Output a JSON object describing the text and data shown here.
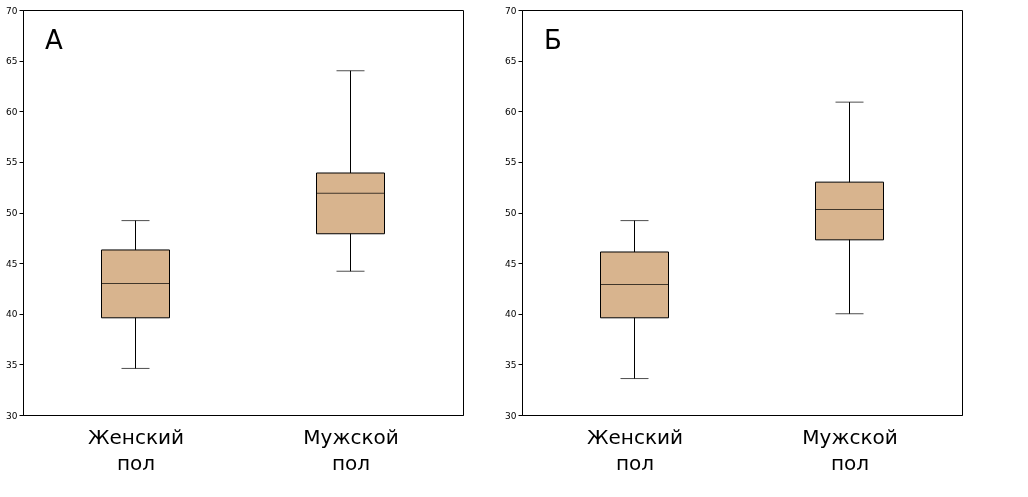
{
  "chart_data": [
    {
      "type": "box",
      "annotations": [
        {
          "text": "A"
        }
      ],
      "categories": [
        "Женский пол",
        "Мужской пол"
      ],
      "ylim": [
        30,
        70
      ],
      "yticks": [
        30,
        35,
        40,
        45,
        50,
        55,
        60,
        65,
        70
      ],
      "grid": false,
      "series": [
        {
          "color": "#d8b48e",
          "boxes": [
            {
              "low": 34.6,
              "q1": 39.6,
              "median": 43.0,
              "q3": 46.3,
              "high": 49.2
            },
            {
              "low": 44.2,
              "q1": 47.9,
              "median": 51.9,
              "q3": 53.9,
              "high": 64.0
            }
          ]
        }
      ]
    },
    {
      "type": "box",
      "annotations": [
        {
          "text": "Б"
        }
      ],
      "categories": [
        "Женский пол",
        "Мужской пол"
      ],
      "ylim": [
        30,
        70
      ],
      "yticks": [
        30,
        35,
        40,
        45,
        50,
        55,
        60,
        65,
        70
      ],
      "grid": false,
      "series": [
        {
          "color": "#d8b48e",
          "boxes": [
            {
              "low": 33.6,
              "q1": 39.6,
              "median": 42.9,
              "q3": 46.1,
              "high": 49.2
            },
            {
              "low": 40.0,
              "q1": 47.3,
              "median": 50.3,
              "q3": 53.0,
              "high": 60.9
            }
          ]
        }
      ]
    }
  ]
}
